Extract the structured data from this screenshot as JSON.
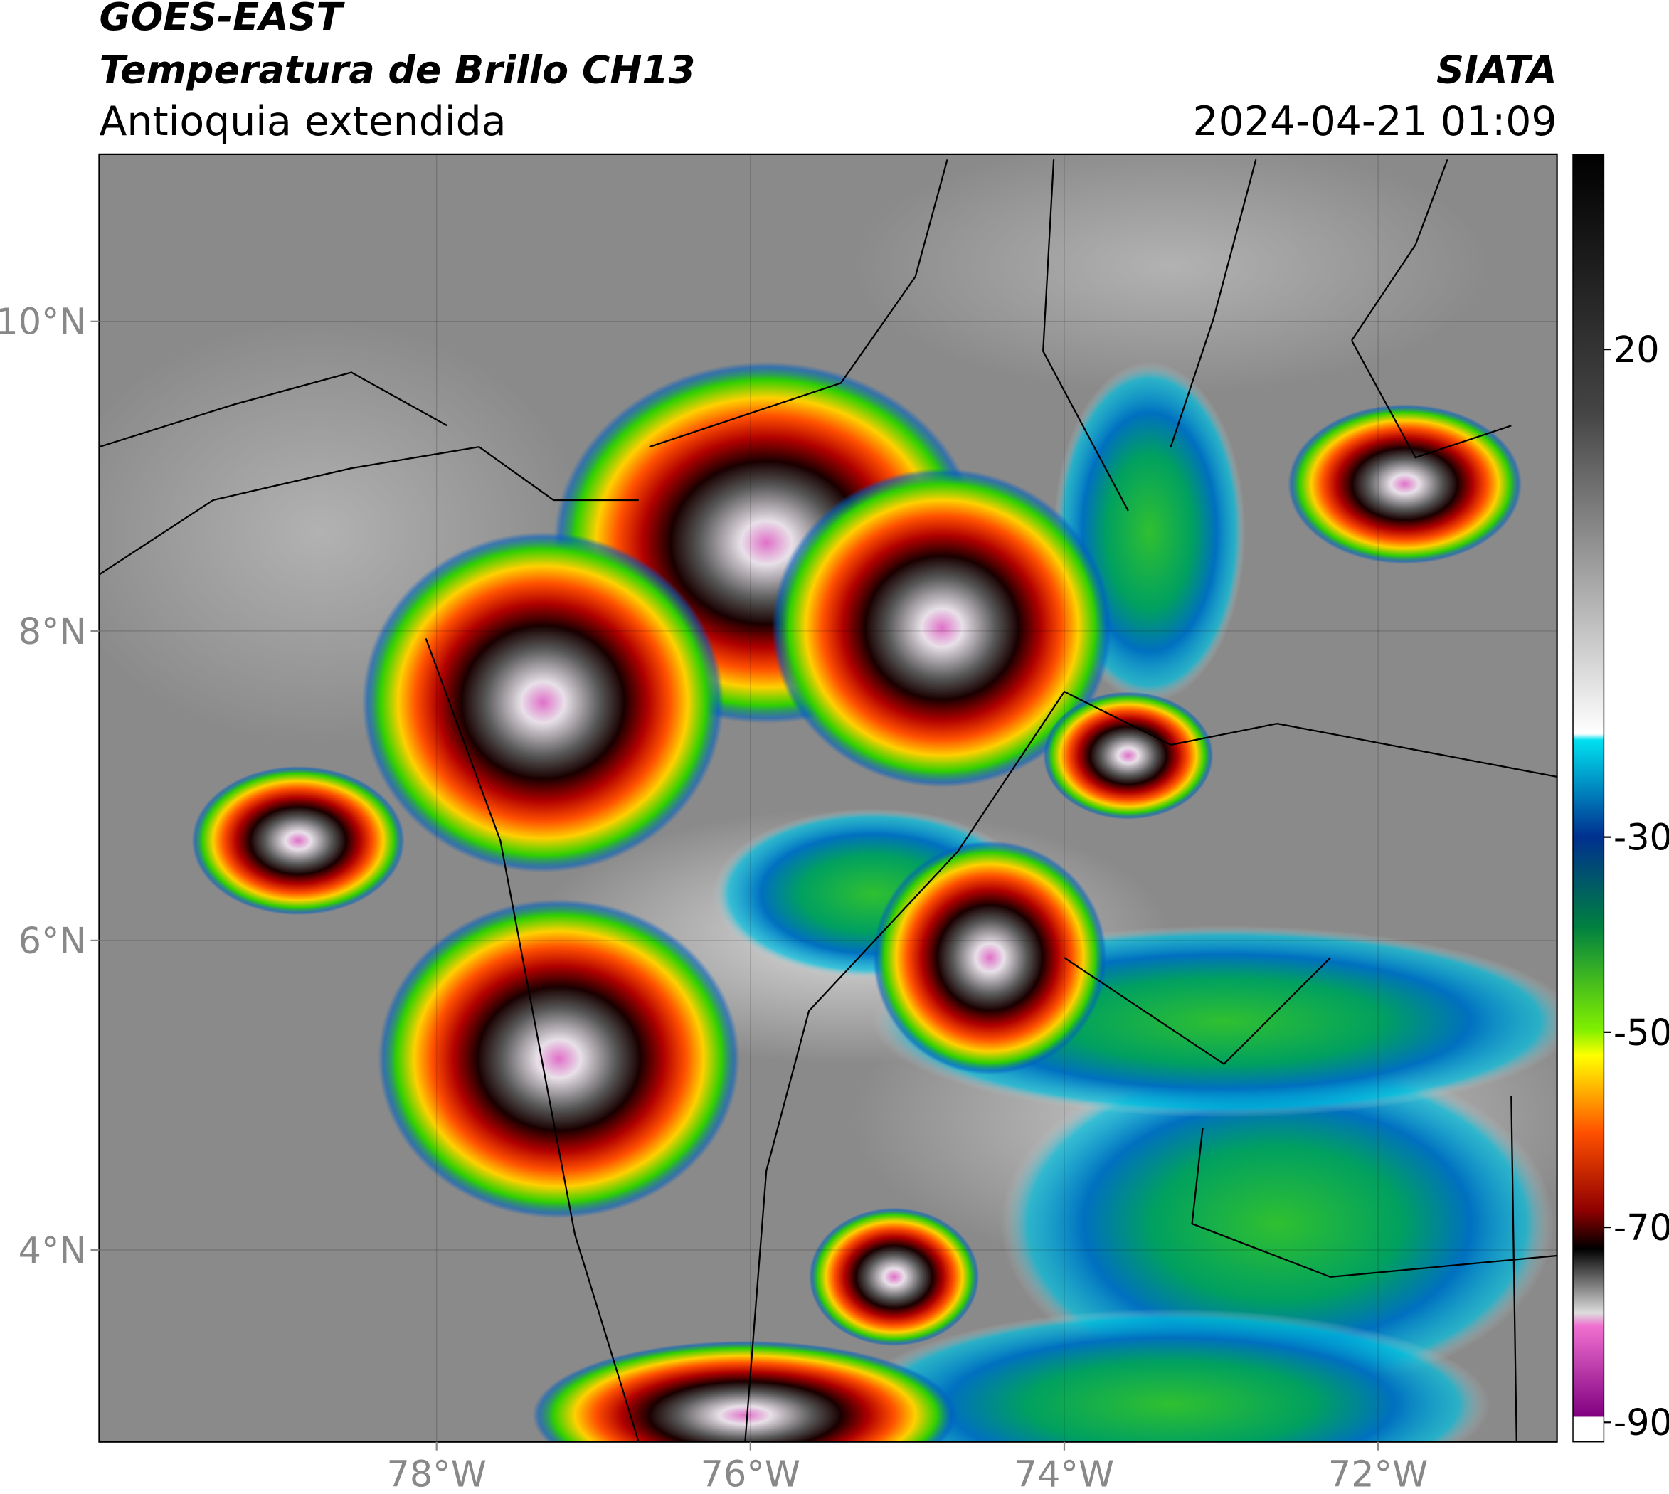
{
  "header": {
    "satellite": "GOES-EAST",
    "product": "Temperatura de Brillo CH13",
    "region": "Antioquia extendida",
    "source": "SIATA",
    "datetime": "2024-04-21 01:09"
  },
  "map": {
    "lon_range": [
      -80.15,
      -70.86
    ],
    "lat_range": [
      2.76,
      11.08
    ],
    "lon_ticks": [
      {
        "value": -78,
        "label": "78°W"
      },
      {
        "value": -76,
        "label": "76°W"
      },
      {
        "value": -74,
        "label": "74°W"
      },
      {
        "value": -72,
        "label": "72°W"
      }
    ],
    "lat_ticks": [
      {
        "value": 10,
        "label": "10°N"
      },
      {
        "value": 8,
        "label": "8°N"
      },
      {
        "value": 6,
        "label": "6°N"
      },
      {
        "value": 4,
        "label": "4°N"
      }
    ]
  },
  "colorbar": {
    "range": [
      40,
      -92
    ],
    "ticks": [
      20,
      -30,
      -50,
      -70,
      -90
    ]
  }
}
